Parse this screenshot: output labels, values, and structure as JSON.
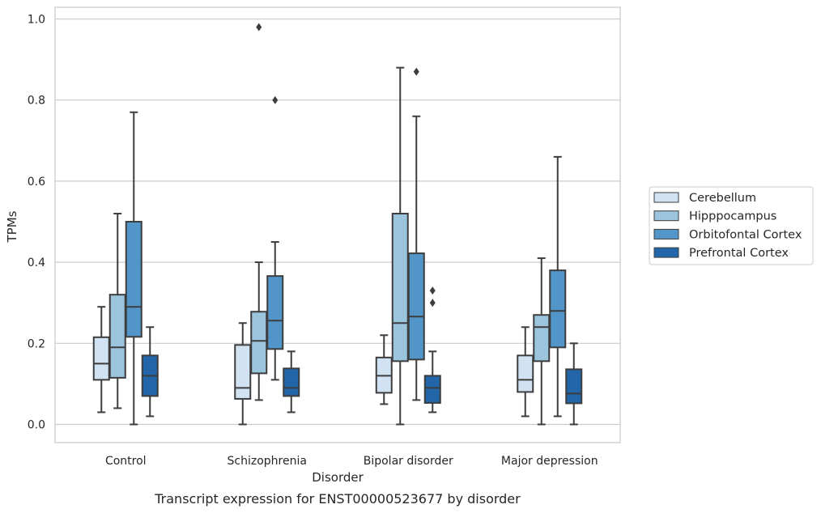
{
  "chart_data": {
    "type": "box",
    "title": "",
    "caption": "Transcript expression for ENST00000523677 by disorder",
    "xlabel": "Disorder",
    "ylabel": "TPMs",
    "ylim": [
      -0.045,
      1.03
    ],
    "yticks": [
      0.0,
      0.2,
      0.4,
      0.6,
      0.8,
      1.0
    ],
    "ytick_labels": [
      "0.0",
      "0.2",
      "0.4",
      "0.6",
      "0.8",
      "1.0"
    ],
    "grid": true,
    "legend_position": "right",
    "categories": [
      "Control",
      "Schizophrenia",
      "Bipolar disorder",
      "Major depression"
    ],
    "series": [
      {
        "name": "Cerebellum",
        "color": "#d1e2f2",
        "boxes": [
          {
            "whisker_low": 0.03,
            "q1": 0.11,
            "median": 0.15,
            "q3": 0.215,
            "whisker_high": 0.29,
            "outliers": []
          },
          {
            "whisker_low": 0.0,
            "q1": 0.063,
            "median": 0.09,
            "q3": 0.196,
            "whisker_high": 0.25,
            "outliers": []
          },
          {
            "whisker_low": 0.05,
            "q1": 0.078,
            "median": 0.12,
            "q3": 0.165,
            "whisker_high": 0.22,
            "outliers": []
          },
          {
            "whisker_low": 0.02,
            "q1": 0.08,
            "median": 0.11,
            "q3": 0.17,
            "whisker_high": 0.24,
            "outliers": []
          }
        ]
      },
      {
        "name": "Hipppocampus",
        "color": "#9bc4dd",
        "boxes": [
          {
            "whisker_low": 0.04,
            "q1": 0.115,
            "median": 0.19,
            "q3": 0.32,
            "whisker_high": 0.52,
            "outliers": []
          },
          {
            "whisker_low": 0.06,
            "q1": 0.126,
            "median": 0.206,
            "q3": 0.278,
            "whisker_high": 0.4,
            "outliers": [
              0.98
            ]
          },
          {
            "whisker_low": 0.0,
            "q1": 0.156,
            "median": 0.25,
            "q3": 0.52,
            "whisker_high": 0.88,
            "outliers": []
          },
          {
            "whisker_low": 0.0,
            "q1": 0.156,
            "median": 0.24,
            "q3": 0.27,
            "whisker_high": 0.41,
            "outliers": []
          }
        ]
      },
      {
        "name": "Orbitofontal Cortex",
        "color": "#5296c9",
        "boxes": [
          {
            "whisker_low": 0.0,
            "q1": 0.216,
            "median": 0.29,
            "q3": 0.5,
            "whisker_high": 0.77,
            "outliers": []
          },
          {
            "whisker_low": 0.11,
            "q1": 0.186,
            "median": 0.256,
            "q3": 0.366,
            "whisker_high": 0.45,
            "outliers": [
              0.8
            ]
          },
          {
            "whisker_low": 0.06,
            "q1": 0.16,
            "median": 0.266,
            "q3": 0.422,
            "whisker_high": 0.76,
            "outliers": [
              0.87
            ]
          },
          {
            "whisker_low": 0.02,
            "q1": 0.19,
            "median": 0.28,
            "q3": 0.38,
            "whisker_high": 0.66,
            "outliers": []
          }
        ]
      },
      {
        "name": "Prefrontal Cortex",
        "color": "#2266a9",
        "boxes": [
          {
            "whisker_low": 0.02,
            "q1": 0.07,
            "median": 0.12,
            "q3": 0.17,
            "whisker_high": 0.24,
            "outliers": []
          },
          {
            "whisker_low": 0.03,
            "q1": 0.07,
            "median": 0.09,
            "q3": 0.138,
            "whisker_high": 0.18,
            "outliers": []
          },
          {
            "whisker_low": 0.03,
            "q1": 0.053,
            "median": 0.09,
            "q3": 0.12,
            "whisker_high": 0.18,
            "outliers": [
              0.3,
              0.33
            ]
          },
          {
            "whisker_low": 0.0,
            "q1": 0.052,
            "median": 0.076,
            "q3": 0.136,
            "whisker_high": 0.2,
            "outliers": []
          }
        ]
      }
    ]
  }
}
